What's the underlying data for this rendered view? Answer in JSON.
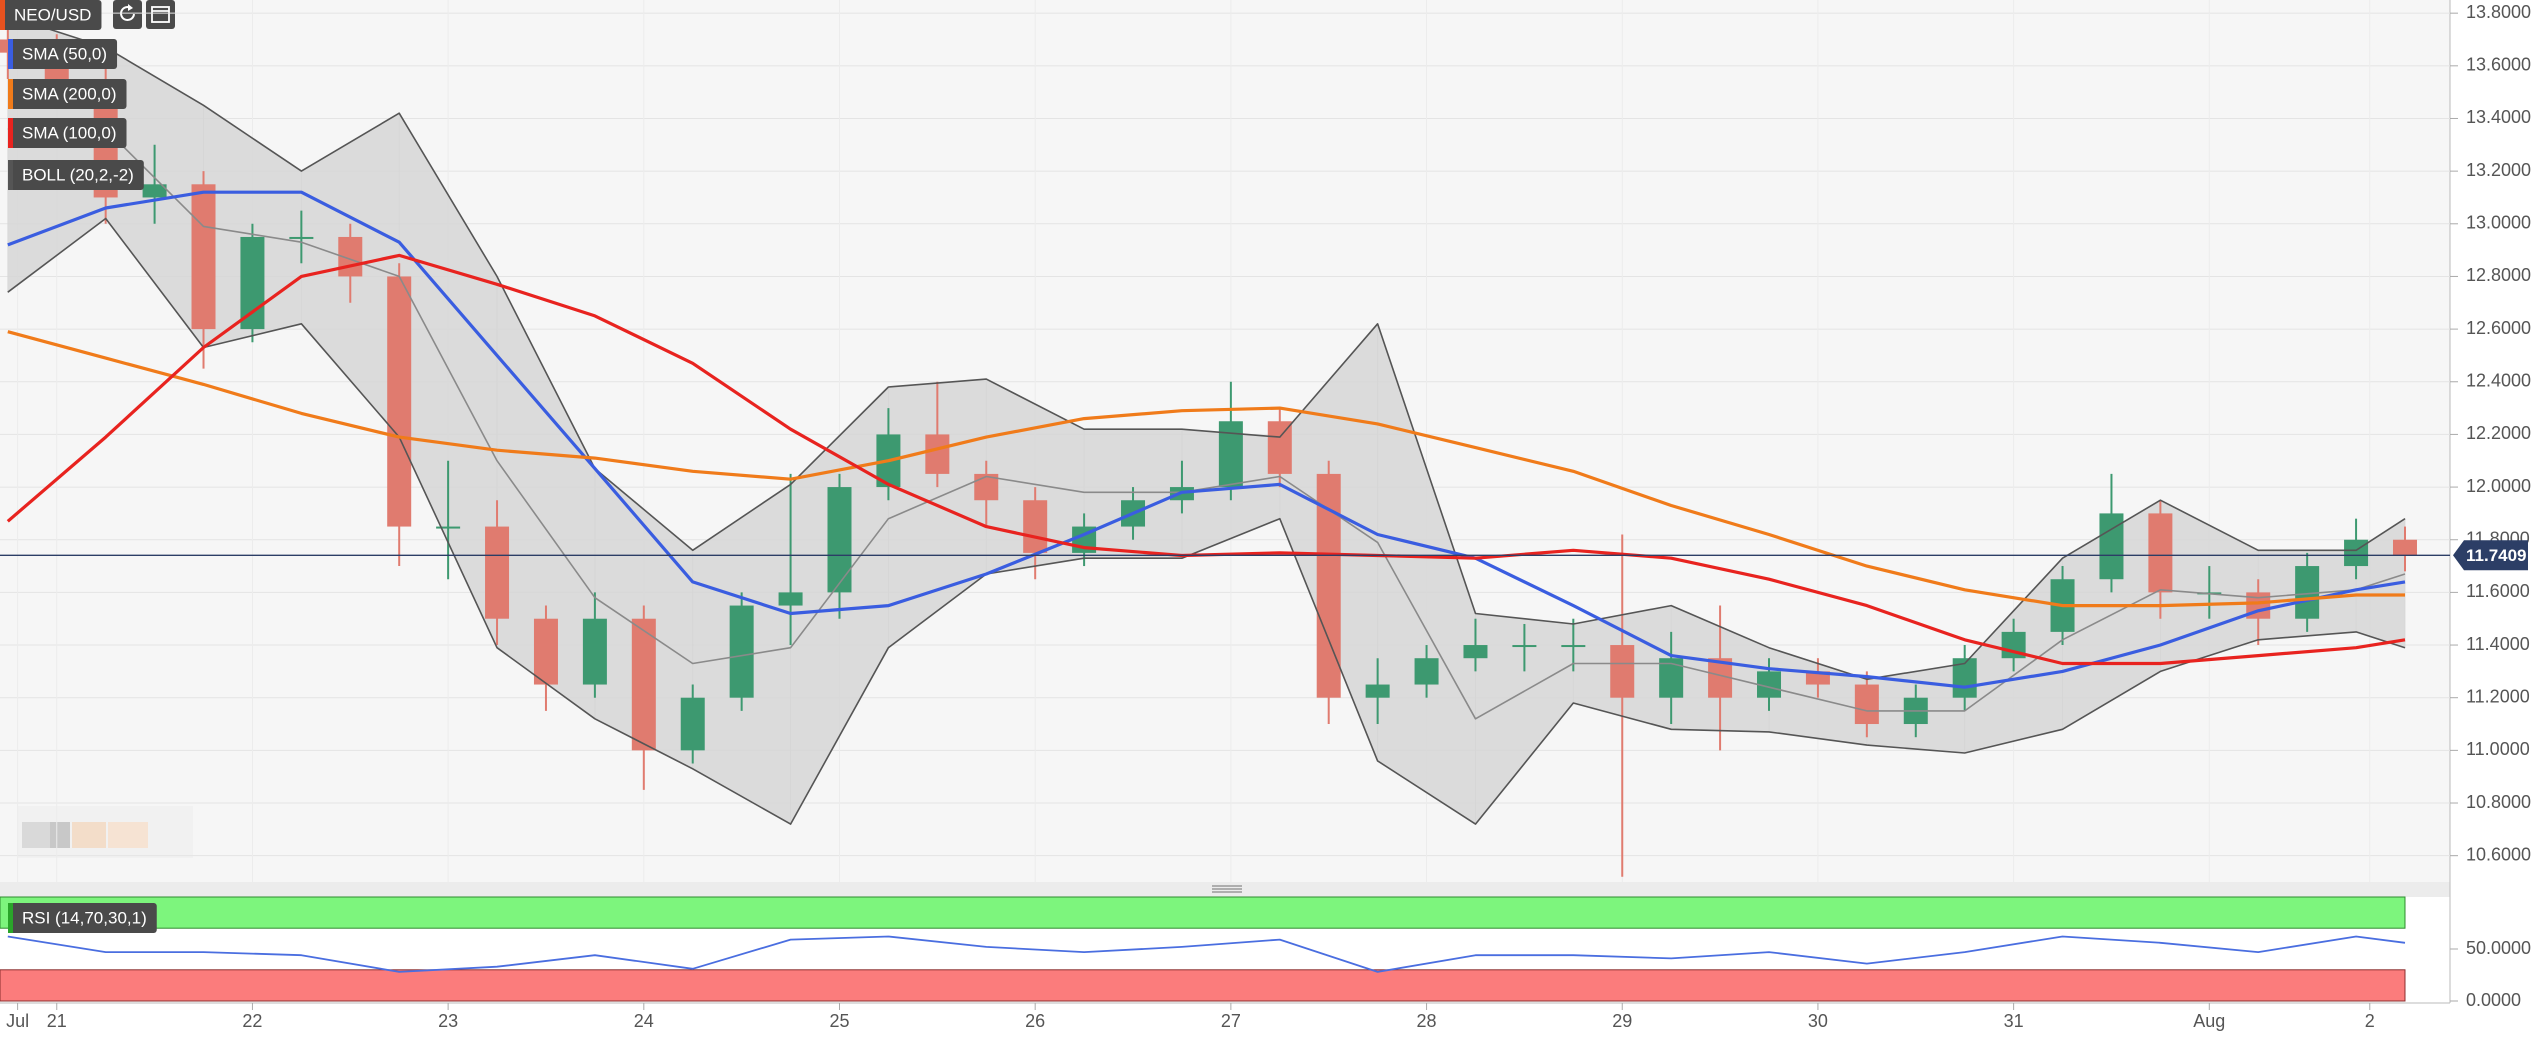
{
  "chart_data": [
    {
      "type": "candlestick",
      "xlim": [
        20.71,
        33.23
      ],
      "ylim": [
        10.5,
        13.85
      ],
      "yticks": [
        {
          "value": 10.6,
          "label": "10.6000"
        },
        {
          "value": 10.8,
          "label": "10.8000"
        },
        {
          "value": 11,
          "label": "11.0000"
        },
        {
          "value": 11.2,
          "label": "11.2000"
        },
        {
          "value": 11.4,
          "label": "11.4000"
        },
        {
          "value": 11.6,
          "label": "11.6000"
        },
        {
          "value": 11.8,
          "label": "11.8000"
        },
        {
          "value": 12,
          "label": "12.0000"
        },
        {
          "value": 12.2,
          "label": "12.2000"
        },
        {
          "value": 12.4,
          "label": "12.4000"
        },
        {
          "value": 12.6,
          "label": "12.6000"
        },
        {
          "value": 12.8,
          "label": "12.8000"
        },
        {
          "value": 13,
          "label": "13.0000"
        },
        {
          "value": 13.2,
          "label": "13.2000"
        },
        {
          "value": 13.4,
          "label": "13.4000"
        },
        {
          "value": 13.6,
          "label": "13.6000"
        },
        {
          "value": 13.8,
          "label": "13.8000"
        }
      ],
      "grid": true,
      "last_price": 11.7409,
      "candles": {
        "name": "NEO/USD",
        "up_color": "#3d9970",
        "down_color": "#e07b6f",
        "color": "#e8521f",
        "x": [
          20.75,
          21,
          21.25,
          21.5,
          21.75,
          22,
          22.25,
          22.5,
          22.75,
          23,
          23.25,
          23.5,
          23.75,
          24,
          24.25,
          24.5,
          24.75,
          25,
          25.25,
          25.5,
          25.75,
          26,
          26.25,
          26.5,
          26.75,
          27,
          27.25,
          27.5,
          27.75,
          28,
          28.25,
          28.5,
          28.75,
          29,
          29.25,
          29.5,
          29.75,
          30,
          30.25,
          30.5,
          30.75,
          31,
          31.25,
          31.5,
          31.75,
          32,
          32.25,
          32.5,
          32.75,
          33
        ],
        "open": [
          13.7,
          13.65,
          13.55,
          13.1,
          13.15,
          12.6,
          12.95,
          12.95,
          12.8,
          11.85,
          11.85,
          11.5,
          11.25,
          11.5,
          11.0,
          11.2,
          11.55,
          11.6,
          12.0,
          12.2,
          12.05,
          11.95,
          11.75,
          11.85,
          11.95,
          12.0,
          12.25,
          12.05,
          11.2,
          11.25,
          11.35,
          11.4,
          11.4,
          11.4,
          11.2,
          11.35,
          11.2,
          11.3,
          11.25,
          11.1,
          11.2,
          11.35,
          11.45,
          11.65,
          11.9,
          11.6,
          11.6,
          11.5,
          11.7,
          11.8
        ],
        "high": [
          13.8,
          13.72,
          13.6,
          13.3,
          13.2,
          13.0,
          13.05,
          13.0,
          12.85,
          12.1,
          11.95,
          11.55,
          11.6,
          11.55,
          11.25,
          11.6,
          12.05,
          12.05,
          12.3,
          12.4,
          12.1,
          12.0,
          11.9,
          12.0,
          12.1,
          12.4,
          12.3,
          12.1,
          11.35,
          11.4,
          11.5,
          11.48,
          11.5,
          11.82,
          11.45,
          11.55,
          11.35,
          11.35,
          11.3,
          11.25,
          11.4,
          11.5,
          11.7,
          12.05,
          11.95,
          11.7,
          11.65,
          11.75,
          11.88,
          11.85
        ],
        "low": [
          13.55,
          13.45,
          13.0,
          13.0,
          12.45,
          12.55,
          12.85,
          12.7,
          11.7,
          11.65,
          11.4,
          11.15,
          11.2,
          10.85,
          10.95,
          11.15,
          11.4,
          11.5,
          11.95,
          12.0,
          11.85,
          11.65,
          11.7,
          11.8,
          11.9,
          11.95,
          12.0,
          11.1,
          11.1,
          11.2,
          11.3,
          11.3,
          11.3,
          10.52,
          11.1,
          11.0,
          11.15,
          11.2,
          11.05,
          11.05,
          11.15,
          11.3,
          11.4,
          11.6,
          11.5,
          11.5,
          11.4,
          11.45,
          11.65,
          11.68
        ],
        "close": [
          13.65,
          13.55,
          13.1,
          13.15,
          12.6,
          12.95,
          12.95,
          12.8,
          11.85,
          11.85,
          11.5,
          11.25,
          11.5,
          11.0,
          11.2,
          11.55,
          11.6,
          12.0,
          12.2,
          12.05,
          11.95,
          11.75,
          11.85,
          11.95,
          12.0,
          12.25,
          12.05,
          11.2,
          11.25,
          11.35,
          11.4,
          11.4,
          11.4,
          11.2,
          11.35,
          11.2,
          11.3,
          11.25,
          11.1,
          11.2,
          11.35,
          11.45,
          11.65,
          11.9,
          11.6,
          11.6,
          11.5,
          11.7,
          11.8,
          11.7409
        ]
      },
      "line_x": [
        20.75,
        21.25,
        21.75,
        22.25,
        22.75,
        23.25,
        23.75,
        24.25,
        24.75,
        25.25,
        25.75,
        26.25,
        26.75,
        27.25,
        27.75,
        28.25,
        28.75,
        29.25,
        29.75,
        30.25,
        30.75,
        31.25,
        31.75,
        32.25,
        32.75,
        33.0
      ],
      "series": [
        {
          "name": "SMA (50,0)",
          "color": "#3a5de0",
          "values": [
            12.92,
            13.06,
            13.12,
            13.12,
            12.93,
            12.5,
            12.07,
            11.64,
            11.52,
            11.55,
            11.67,
            11.82,
            11.98,
            12.01,
            11.82,
            11.73,
            11.55,
            11.36,
            11.31,
            11.28,
            11.24,
            11.3,
            11.4,
            11.53,
            11.61,
            11.64
          ]
        },
        {
          "name": "SMA (200,0)",
          "color": "#f07b1a",
          "values": [
            12.59,
            12.49,
            12.39,
            12.28,
            12.19,
            12.14,
            12.11,
            12.06,
            12.03,
            12.1,
            12.19,
            12.26,
            12.29,
            12.3,
            12.24,
            12.15,
            12.06,
            11.93,
            11.82,
            11.7,
            11.61,
            11.55,
            11.55,
            11.56,
            11.59,
            11.59
          ]
        },
        {
          "name": "SMA (100,0)",
          "color": "#e8231f",
          "values": [
            11.87,
            12.19,
            12.53,
            12.8,
            12.88,
            12.77,
            12.65,
            12.47,
            12.22,
            12.01,
            11.85,
            11.77,
            11.74,
            11.75,
            11.74,
            11.73,
            11.76,
            11.73,
            11.65,
            11.55,
            11.42,
            11.33,
            11.33,
            11.36,
            11.39,
            11.42
          ]
        }
      ],
      "bollinger": {
        "name": "BOLL (20,2,-2)",
        "color": "#555555",
        "fill": "#d6d6d6",
        "middle_color": "#8a8a8a",
        "upper": [
          13.79,
          13.67,
          13.45,
          13.2,
          13.42,
          12.8,
          12.07,
          11.76,
          12.01,
          12.38,
          12.41,
          12.22,
          12.22,
          12.19,
          12.62,
          11.52,
          11.48,
          11.55,
          11.39,
          11.27,
          11.33,
          11.73,
          11.95,
          11.76,
          11.76,
          11.88
        ],
        "middle": [
          13.36,
          13.36,
          12.99,
          12.93,
          12.8,
          12.1,
          11.58,
          11.33,
          11.39,
          11.88,
          12.04,
          11.98,
          11.98,
          12.04,
          11.79,
          11.12,
          11.33,
          11.33,
          11.24,
          11.15,
          11.15,
          11.42,
          11.61,
          11.58,
          11.61,
          11.67
        ],
        "lower": [
          12.74,
          13.02,
          12.53,
          12.62,
          12.19,
          11.39,
          11.12,
          10.93,
          10.72,
          11.39,
          11.67,
          11.73,
          11.73,
          11.88,
          10.96,
          10.72,
          11.18,
          11.08,
          11.07,
          11.02,
          10.99,
          11.08,
          11.3,
          11.42,
          11.45,
          11.39
        ]
      }
    },
    {
      "type": "line",
      "xlim": [
        20.71,
        33.23
      ],
      "ylim": [
        0,
        100
      ],
      "yticks": [
        {
          "value": 0,
          "label": "0.0000"
        },
        {
          "value": 50,
          "label": "50.0000"
        }
      ],
      "xticks": [
        {
          "value": 20.8,
          "label": "Jul"
        },
        21,
        22,
        23,
        24,
        25,
        26,
        27,
        28,
        29,
        30,
        31,
        {
          "value": 32,
          "label": "Aug"
        },
        {
          "value": 32.82,
          "label": "2"
        }
      ],
      "overbought": 70,
      "oversold": 30,
      "overbought_color": "#7df57d",
      "oversold_color": "#fb7c7c",
      "series": [
        {
          "name": "RSI (14,70,30,1)",
          "color": "#4a6ee0",
          "legend_color": "#2aa52a",
          "x": [
            20.75,
            21.25,
            21.75,
            22.25,
            22.75,
            23.25,
            23.75,
            24.25,
            24.75,
            25.25,
            25.75,
            26.25,
            26.75,
            27.25,
            27.75,
            28.25,
            28.75,
            29.25,
            29.75,
            30.25,
            30.75,
            31.25,
            31.75,
            32.25,
            32.75,
            33.0
          ],
          "values": [
            62,
            47,
            47,
            44,
            28,
            33,
            44,
            31,
            59,
            62,
            52,
            47,
            52,
            59,
            28,
            44,
            44,
            41,
            47,
            36,
            47,
            62,
            56,
            47,
            62,
            56
          ]
        }
      ]
    }
  ]
}
